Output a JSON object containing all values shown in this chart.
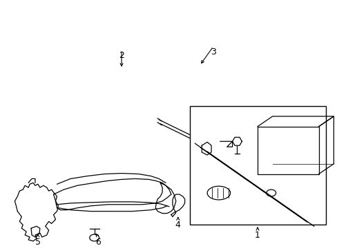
{
  "background_color": "#ffffff",
  "line_color": "#000000",
  "fig_width": 4.89,
  "fig_height": 3.6,
  "dpi": 100,
  "label_fontsize": 9,
  "lw": 0.9
}
